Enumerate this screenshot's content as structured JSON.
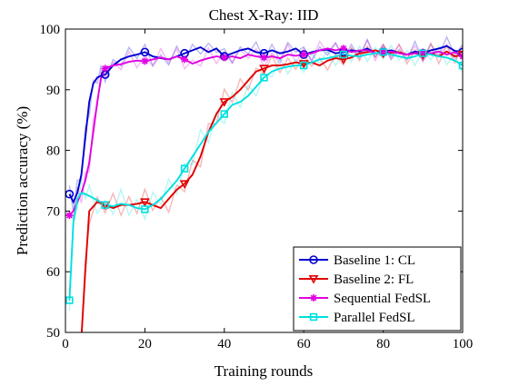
{
  "chart_data": {
    "type": "line",
    "title": "Chest X-Ray: IID",
    "xlabel": "Training rounds",
    "ylabel": "Prediction accuracy (%)",
    "xlim": [
      0,
      100
    ],
    "ylim": [
      50,
      100
    ],
    "xticks": [
      0,
      20,
      40,
      60,
      80,
      100
    ],
    "yticks": [
      50,
      60,
      70,
      80,
      90,
      100
    ],
    "grid": false,
    "legend_position": "bottom-right",
    "series": [
      {
        "name": "Baseline 1: CL",
        "color": "#0000d0",
        "marker": "circle",
        "x": [
          1,
          2,
          3,
          4,
          5,
          6,
          7,
          8,
          9,
          10,
          12,
          14,
          16,
          18,
          20,
          22,
          24,
          26,
          28,
          30,
          32,
          34,
          36,
          38,
          40,
          42,
          44,
          46,
          48,
          50,
          52,
          54,
          56,
          58,
          60,
          62,
          64,
          66,
          68,
          70,
          72,
          74,
          76,
          78,
          80,
          82,
          84,
          86,
          88,
          90,
          92,
          94,
          96,
          98,
          100
        ],
        "values": [
          72.8,
          71.5,
          73,
          76,
          82,
          88,
          91,
          92,
          92.3,
          92.5,
          94,
          95,
          95.5,
          95.8,
          96.2,
          95.5,
          95.2,
          95,
          95.5,
          96,
          96.5,
          97,
          96.2,
          96.8,
          95.5,
          96,
          96.5,
          96.8,
          96.2,
          96,
          96.5,
          96,
          96.3,
          96.8,
          95.8,
          96.2,
          96.5,
          96.6,
          96,
          96.2,
          96.5,
          96.3,
          96.8,
          96,
          96.2,
          96.5,
          96.1,
          95.8,
          96.3,
          96,
          96.5,
          96.8,
          97.2,
          96.4,
          96.2
        ]
      },
      {
        "name": "Baseline 2: FL",
        "color": "#e00000",
        "marker": "triangle-down",
        "x": [
          4,
          5,
          6,
          8,
          10,
          12,
          14,
          16,
          18,
          20,
          22,
          24,
          26,
          28,
          30,
          32,
          34,
          36,
          38,
          40,
          42,
          44,
          46,
          48,
          50,
          52,
          54,
          56,
          58,
          60,
          62,
          64,
          66,
          68,
          70,
          72,
          74,
          76,
          78,
          80,
          82,
          84,
          86,
          88,
          90,
          92,
          94,
          96,
          98,
          100
        ],
        "values": [
          49,
          60,
          70,
          71.5,
          71,
          70.5,
          71,
          71,
          71.2,
          71.5,
          71,
          70.5,
          72,
          73.5,
          74.5,
          76,
          79,
          83,
          86,
          88,
          88.8,
          90,
          91.5,
          93,
          93.5,
          94,
          94,
          94.2,
          94.5,
          94.3,
          94.5,
          94,
          94.8,
          95.2,
          95,
          95.3,
          96,
          96.2,
          96.5,
          96,
          96.1,
          96.2,
          95.8,
          96,
          95.8,
          96,
          95.5,
          96.3,
          95.5,
          95.8
        ]
      },
      {
        "name": "Sequential FedSL",
        "color": "#e000e0",
        "marker": "asterisk",
        "x": [
          1,
          2,
          3,
          4,
          5,
          6,
          7,
          8,
          9,
          10,
          12,
          14,
          16,
          18,
          20,
          22,
          24,
          26,
          28,
          30,
          32,
          34,
          36,
          38,
          40,
          42,
          44,
          46,
          48,
          50,
          52,
          54,
          56,
          58,
          60,
          62,
          64,
          66,
          68,
          70,
          72,
          74,
          76,
          78,
          80,
          82,
          84,
          86,
          88,
          90,
          92,
          94,
          96,
          98,
          100
        ],
        "values": [
          69.3,
          70,
          71.5,
          73,
          75,
          78,
          83,
          88,
          92,
          93.5,
          94,
          94.2,
          94.6,
          94.8,
          94.7,
          95,
          95.3,
          95,
          95.5,
          95,
          94.3,
          94.8,
          95.2,
          95.5,
          95.3,
          95.5,
          95.2,
          95.8,
          95.5,
          95.3,
          95.5,
          95.2,
          95.8,
          95.6,
          95.8,
          96,
          96.5,
          96.8,
          96.5,
          96.8,
          96.2,
          96.5,
          96.5,
          96,
          96.2,
          96.3,
          96,
          95.8,
          96,
          96.2,
          96,
          96.3,
          95.8,
          96.2,
          95.5
        ]
      },
      {
        "name": "Parallel FedSL",
        "color": "#00e0e0",
        "marker": "square",
        "x": [
          1,
          2,
          3,
          4,
          5,
          6,
          8,
          10,
          12,
          14,
          16,
          18,
          20,
          22,
          24,
          26,
          28,
          30,
          32,
          34,
          36,
          38,
          40,
          42,
          44,
          46,
          48,
          50,
          52,
          54,
          56,
          58,
          60,
          62,
          64,
          66,
          68,
          70,
          72,
          74,
          76,
          78,
          80,
          82,
          84,
          86,
          88,
          90,
          92,
          94,
          96,
          98,
          100
        ],
        "values": [
          55.3,
          68,
          72,
          73,
          72.8,
          72.5,
          71.8,
          71,
          70.8,
          71.2,
          71,
          70.5,
          70.3,
          71,
          72,
          73.5,
          75,
          77,
          79,
          81,
          83,
          84.5,
          86,
          87.5,
          88,
          89,
          90.5,
          92,
          93,
          93.5,
          93.8,
          94,
          94,
          94.5,
          95,
          95.2,
          95.5,
          95.8,
          95.6,
          95.5,
          95.8,
          96,
          96.2,
          95.8,
          95.5,
          95.2,
          95.5,
          96,
          95.8,
          95.5,
          95.3,
          94.8,
          94
        ]
      }
    ]
  }
}
